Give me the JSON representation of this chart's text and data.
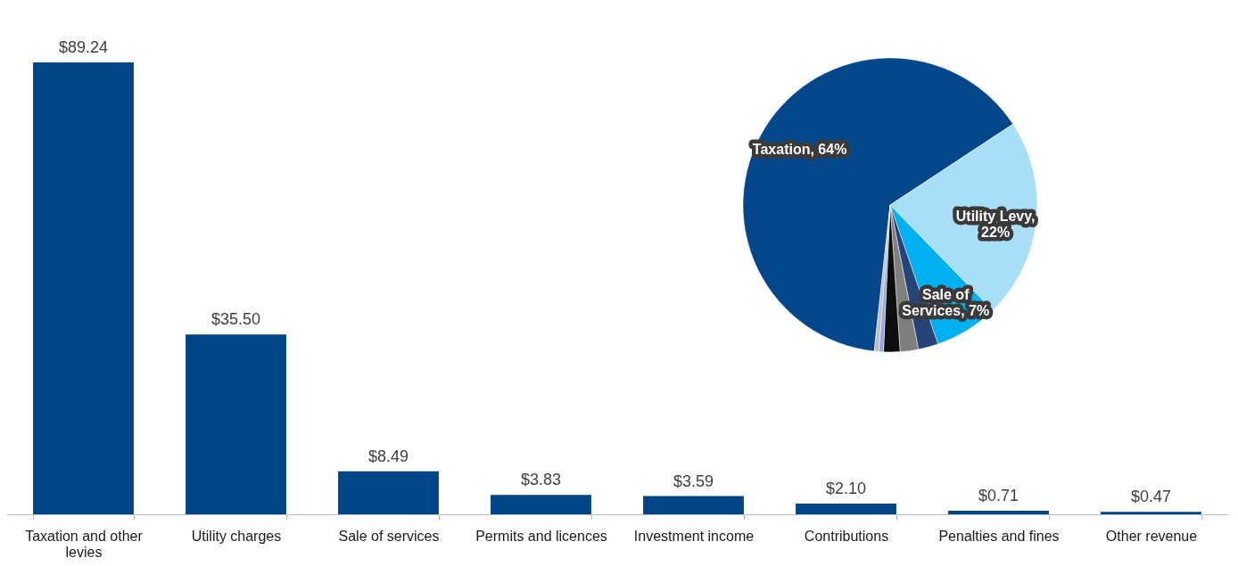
{
  "chart_data": [
    {
      "type": "bar",
      "categories": [
        "Taxation and other levies",
        "Utility charges",
        "Sale of services",
        "Permits and licences",
        "Investment income",
        "Contributions",
        "Penalties and fines",
        "Other revenue"
      ],
      "values": [
        89.24,
        35.5,
        8.49,
        3.83,
        3.59,
        2.1,
        0.71,
        0.47
      ],
      "value_labels": [
        "$89.24",
        "$35.50",
        "$8.49",
        "$3.83",
        "$3.59",
        "$2.10",
        "$0.71",
        "$0.47"
      ],
      "color": "#004586"
    },
    {
      "type": "pie",
      "categories": [
        null,
        null,
        null,
        null,
        null,
        null,
        null,
        null
      ],
      "values": [
        64,
        22,
        7,
        2.2,
        2.0,
        1.8,
        0.5,
        0.5
      ],
      "colors": [
        "#03478a",
        "#a9def7",
        "#00b0f0",
        "#264478",
        "#7f7f7f",
        "#0d0d0d",
        "#8fa8e0",
        "#bfbfbf"
      ],
      "value_labels": [
        "Taxation, 64%",
        "Utility Levy, 22%",
        "Sale of Services, 7%",
        null,
        null,
        null,
        null,
        null
      ],
      "legend": false
    }
  ]
}
